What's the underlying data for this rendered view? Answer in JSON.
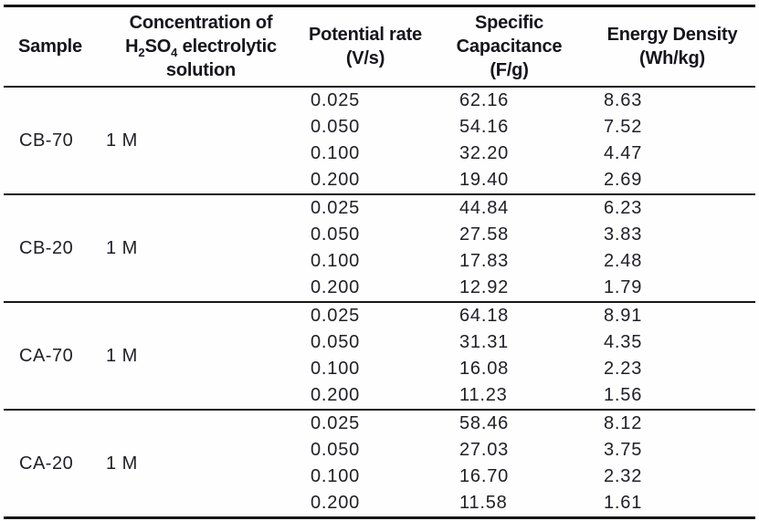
{
  "header": {
    "sample": "Sample",
    "concentration": {
      "line1": "Concentration of",
      "formula_h": "H",
      "formula_sub_2": "2",
      "formula_so": "SO",
      "formula_sub_4": "4",
      "formula_suffix": " electrolytic",
      "line3": "solution"
    },
    "potential_rate": {
      "line1": "Potential rate",
      "line2": "(V/s)"
    },
    "specific_capacitance": {
      "line1": "Specific",
      "line2": "Capacitance",
      "line3": "(F/g)"
    },
    "energy_density": {
      "line1": "Energy Density",
      "line2": "(Wh/kg)"
    }
  },
  "colors": {
    "text": "#1c1c24",
    "rule_lines": "#161616",
    "background": "#fefefe"
  },
  "chart_data": {
    "type": "table",
    "columns": [
      "Sample",
      "Concentration of H2SO4 electrolytic solution",
      "Potential rate (V/s)",
      "Specific Capacitance (F/g)",
      "Energy Density (Wh/kg)"
    ],
    "groups": [
      {
        "sample": "CB-70",
        "concentration": "1 M",
        "rows": [
          {
            "rate": "0.025",
            "capacitance": "62.16",
            "energy": "8.63"
          },
          {
            "rate": "0.050",
            "capacitance": "54.16",
            "energy": "7.52"
          },
          {
            "rate": "0.100",
            "capacitance": "32.20",
            "energy": "4.47"
          },
          {
            "rate": "0.200",
            "capacitance": "19.40",
            "energy": "2.69"
          }
        ]
      },
      {
        "sample": "CB-20",
        "concentration": "1 M",
        "rows": [
          {
            "rate": "0.025",
            "capacitance": "44.84",
            "energy": "6.23"
          },
          {
            "rate": "0.050",
            "capacitance": "27.58",
            "energy": "3.83"
          },
          {
            "rate": "0.100",
            "capacitance": "17.83",
            "energy": "2.48"
          },
          {
            "rate": "0.200",
            "capacitance": "12.92",
            "energy": "1.79"
          }
        ]
      },
      {
        "sample": "CA-70",
        "concentration": "1 M",
        "rows": [
          {
            "rate": "0.025",
            "capacitance": "64.18",
            "energy": "8.91"
          },
          {
            "rate": "0.050",
            "capacitance": "31.31",
            "energy": "4.35"
          },
          {
            "rate": "0.100",
            "capacitance": "16.08",
            "energy": "2.23"
          },
          {
            "rate": "0.200",
            "capacitance": "11.23",
            "energy": "1.56"
          }
        ]
      },
      {
        "sample": "CA-20",
        "concentration": "1 M",
        "rows": [
          {
            "rate": "0.025",
            "capacitance": "58.46",
            "energy": "8.12"
          },
          {
            "rate": "0.050",
            "capacitance": "27.03",
            "energy": "3.75"
          },
          {
            "rate": "0.100",
            "capacitance": "16.70",
            "energy": "2.32"
          },
          {
            "rate": "0.200",
            "capacitance": "11.58",
            "energy": "1.61"
          }
        ]
      }
    ]
  }
}
